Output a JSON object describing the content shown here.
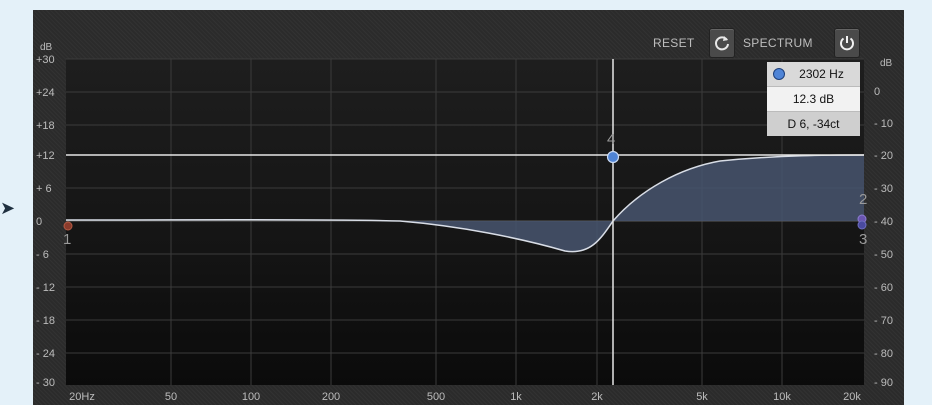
{
  "toolbar": {
    "reset_label": "RESET",
    "spectrum_label": "SPECTRUM",
    "reset_icon": "refresh-icon",
    "spectrum_icon": "power-icon"
  },
  "axes": {
    "left_unit": "dB",
    "right_unit": "dB",
    "left_ticks": [
      "+30",
      "+24",
      "+18",
      "+12",
      "+ 6",
      "0",
      "- 6",
      "- 12",
      "- 18",
      "- 24",
      "- 30"
    ],
    "right_ticks": [
      "0",
      "- 10",
      "- 20",
      "- 30",
      "- 40",
      "- 50",
      "- 60",
      "- 70",
      "- 80",
      "- 90"
    ],
    "freq_ticks": [
      "20Hz",
      "50",
      "100",
      "200",
      "500",
      "1k",
      "2k",
      "5k",
      "10k",
      "20k"
    ]
  },
  "readout": {
    "frequency": "2302 Hz",
    "gain": "12.3 dB",
    "note": "D 6, -34ct"
  },
  "bands": {
    "band1": "1",
    "band2": "2",
    "band3": "3",
    "band4": "4"
  },
  "colors": {
    "accent": "#4f84d6",
    "fill": "#48556e",
    "curve": "#d8dde6",
    "band1_dot": "#8a3b2c",
    "band3_dot": "#6a55b0"
  }
}
